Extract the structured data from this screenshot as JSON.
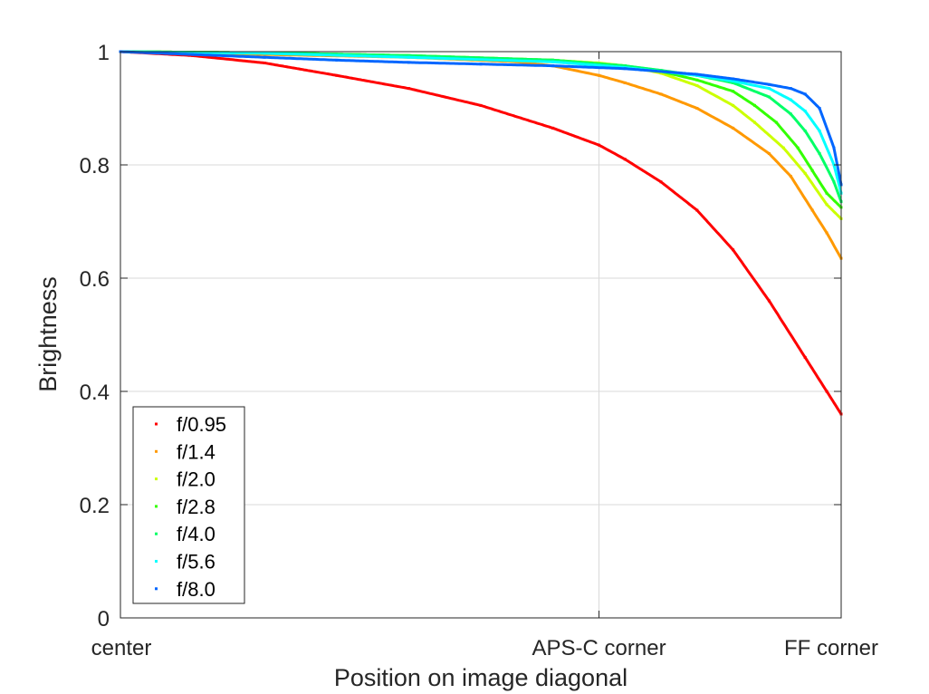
{
  "chart_data": {
    "type": "scatter",
    "title": "",
    "xlabel": "Position on image diagonal",
    "ylabel": "Brightness",
    "xlim": [
      0,
      1
    ],
    "ylim": [
      0,
      1
    ],
    "x_ticks": [
      {
        "value": 0,
        "label": "center"
      },
      {
        "value": 0.664,
        "label": "APS-C corner"
      },
      {
        "value": 1,
        "label": "FF corner"
      }
    ],
    "y_ticks": [
      {
        "value": 0,
        "label": "0"
      },
      {
        "value": 0.2,
        "label": "0.2"
      },
      {
        "value": 0.4,
        "label": "0.4"
      },
      {
        "value": 0.6,
        "label": "0.6"
      },
      {
        "value": 0.8,
        "label": "0.8"
      },
      {
        "value": 1,
        "label": "1"
      }
    ],
    "grid": true,
    "legend_position": "bottom-left",
    "series": [
      {
        "name": "f/0.95",
        "color": "#ff0000",
        "x": [
          0,
          0.1,
          0.2,
          0.3,
          0.4,
          0.5,
          0.6,
          0.664,
          0.7,
          0.75,
          0.8,
          0.85,
          0.9,
          0.95,
          0.98,
          1.0
        ],
        "y": [
          1.0,
          0.993,
          0.98,
          0.958,
          0.935,
          0.905,
          0.865,
          0.835,
          0.81,
          0.77,
          0.72,
          0.65,
          0.56,
          0.46,
          0.4,
          0.36
        ]
      },
      {
        "name": "f/1.4",
        "color": "#ff9900",
        "x": [
          0,
          0.2,
          0.4,
          0.55,
          0.6,
          0.664,
          0.7,
          0.75,
          0.8,
          0.85,
          0.9,
          0.93,
          0.96,
          0.98,
          1.0
        ],
        "y": [
          1.0,
          0.995,
          0.99,
          0.982,
          0.975,
          0.958,
          0.945,
          0.925,
          0.9,
          0.865,
          0.82,
          0.78,
          0.72,
          0.68,
          0.635
        ]
      },
      {
        "name": "f/2.0",
        "color": "#ccff00",
        "x": [
          0,
          0.2,
          0.4,
          0.6,
          0.664,
          0.7,
          0.75,
          0.8,
          0.85,
          0.88,
          0.92,
          0.95,
          0.98,
          1.0
        ],
        "y": [
          1.0,
          0.998,
          0.993,
          0.985,
          0.98,
          0.975,
          0.962,
          0.94,
          0.905,
          0.875,
          0.83,
          0.785,
          0.73,
          0.705
        ]
      },
      {
        "name": "f/2.8",
        "color": "#33ff00",
        "x": [
          0,
          0.2,
          0.4,
          0.6,
          0.7,
          0.75,
          0.8,
          0.85,
          0.88,
          0.91,
          0.94,
          0.96,
          0.98,
          1.0
        ],
        "y": [
          1.0,
          0.998,
          0.993,
          0.985,
          0.975,
          0.965,
          0.95,
          0.93,
          0.905,
          0.875,
          0.83,
          0.79,
          0.75,
          0.725
        ]
      },
      {
        "name": "f/4.0",
        "color": "#00ff66",
        "x": [
          0,
          0.2,
          0.4,
          0.6,
          0.7,
          0.75,
          0.8,
          0.85,
          0.9,
          0.93,
          0.95,
          0.97,
          0.99,
          1.0
        ],
        "y": [
          1.0,
          0.998,
          0.993,
          0.985,
          0.975,
          0.967,
          0.958,
          0.945,
          0.92,
          0.89,
          0.86,
          0.82,
          0.77,
          0.735
        ]
      },
      {
        "name": "f/5.6",
        "color": "#00ffff",
        "x": [
          0,
          0.2,
          0.4,
          0.6,
          0.7,
          0.8,
          0.85,
          0.9,
          0.93,
          0.95,
          0.97,
          0.99,
          1.0
        ],
        "y": [
          1.0,
          0.997,
          0.99,
          0.982,
          0.972,
          0.958,
          0.948,
          0.935,
          0.915,
          0.895,
          0.86,
          0.8,
          0.75
        ]
      },
      {
        "name": "f/8.0",
        "color": "#0066ff",
        "x": [
          0,
          0.1,
          0.2,
          0.3,
          0.4,
          0.5,
          0.6,
          0.7,
          0.8,
          0.85,
          0.9,
          0.93,
          0.95,
          0.97,
          0.99,
          1.0
        ],
        "y": [
          1.0,
          0.995,
          0.99,
          0.985,
          0.981,
          0.978,
          0.975,
          0.97,
          0.96,
          0.952,
          0.942,
          0.935,
          0.925,
          0.9,
          0.83,
          0.765
        ]
      }
    ]
  }
}
